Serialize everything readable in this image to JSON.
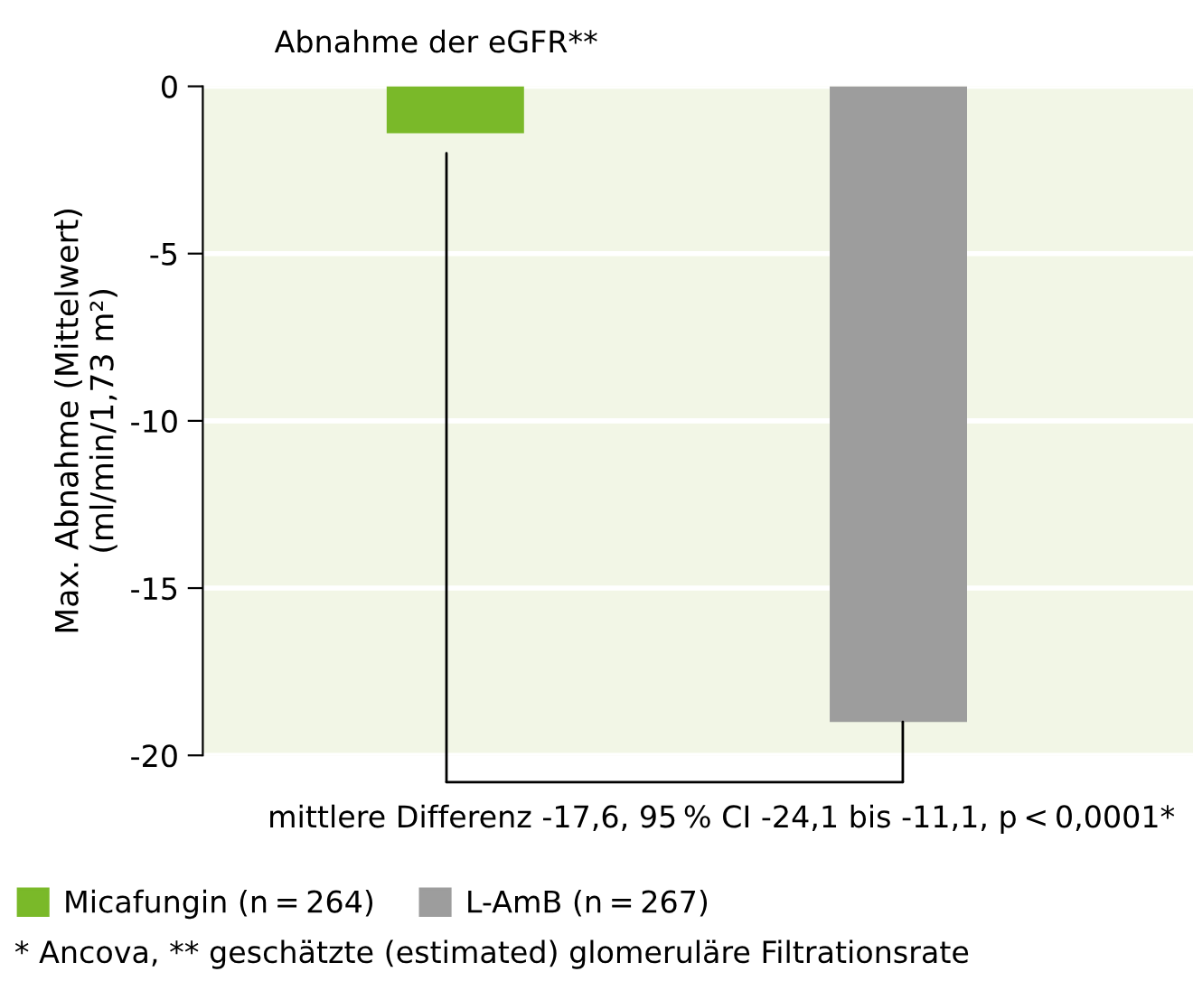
{
  "chart_data": {
    "type": "bar",
    "title": "Abnahme der eGFR**",
    "ylabel": "Max. Abnahme (Mittelwert)\n(ml/min/1,73 m²)",
    "categories": [
      null,
      null
    ],
    "series": [
      {
        "name": "Micafungin (n = 264)",
        "color": "#7ab929",
        "values": [
          -1.4,
          null
        ]
      },
      {
        "name": "L-AmB (n = 267)",
        "color": "#9d9d9d",
        "values": [
          null,
          -19.0
        ]
      }
    ],
    "ylim": [
      -20,
      0
    ],
    "yticks": [
      {
        "value": 0,
        "label": "0"
      },
      {
        "value": -5,
        "label": "-5"
      },
      {
        "value": -10,
        "label": "-10"
      },
      {
        "value": -15,
        "label": "-15"
      },
      {
        "value": -20,
        "label": "-20"
      }
    ],
    "grid": "y",
    "legend": "bottom left",
    "annotations": [
      "mittlere Differenz -17,6, 95 % CI -24,1 bis -11,1, p < 0,0001*",
      "* Ancova, ** geschätzte (estimated) glomeruläre Filtrationsrate"
    ]
  }
}
